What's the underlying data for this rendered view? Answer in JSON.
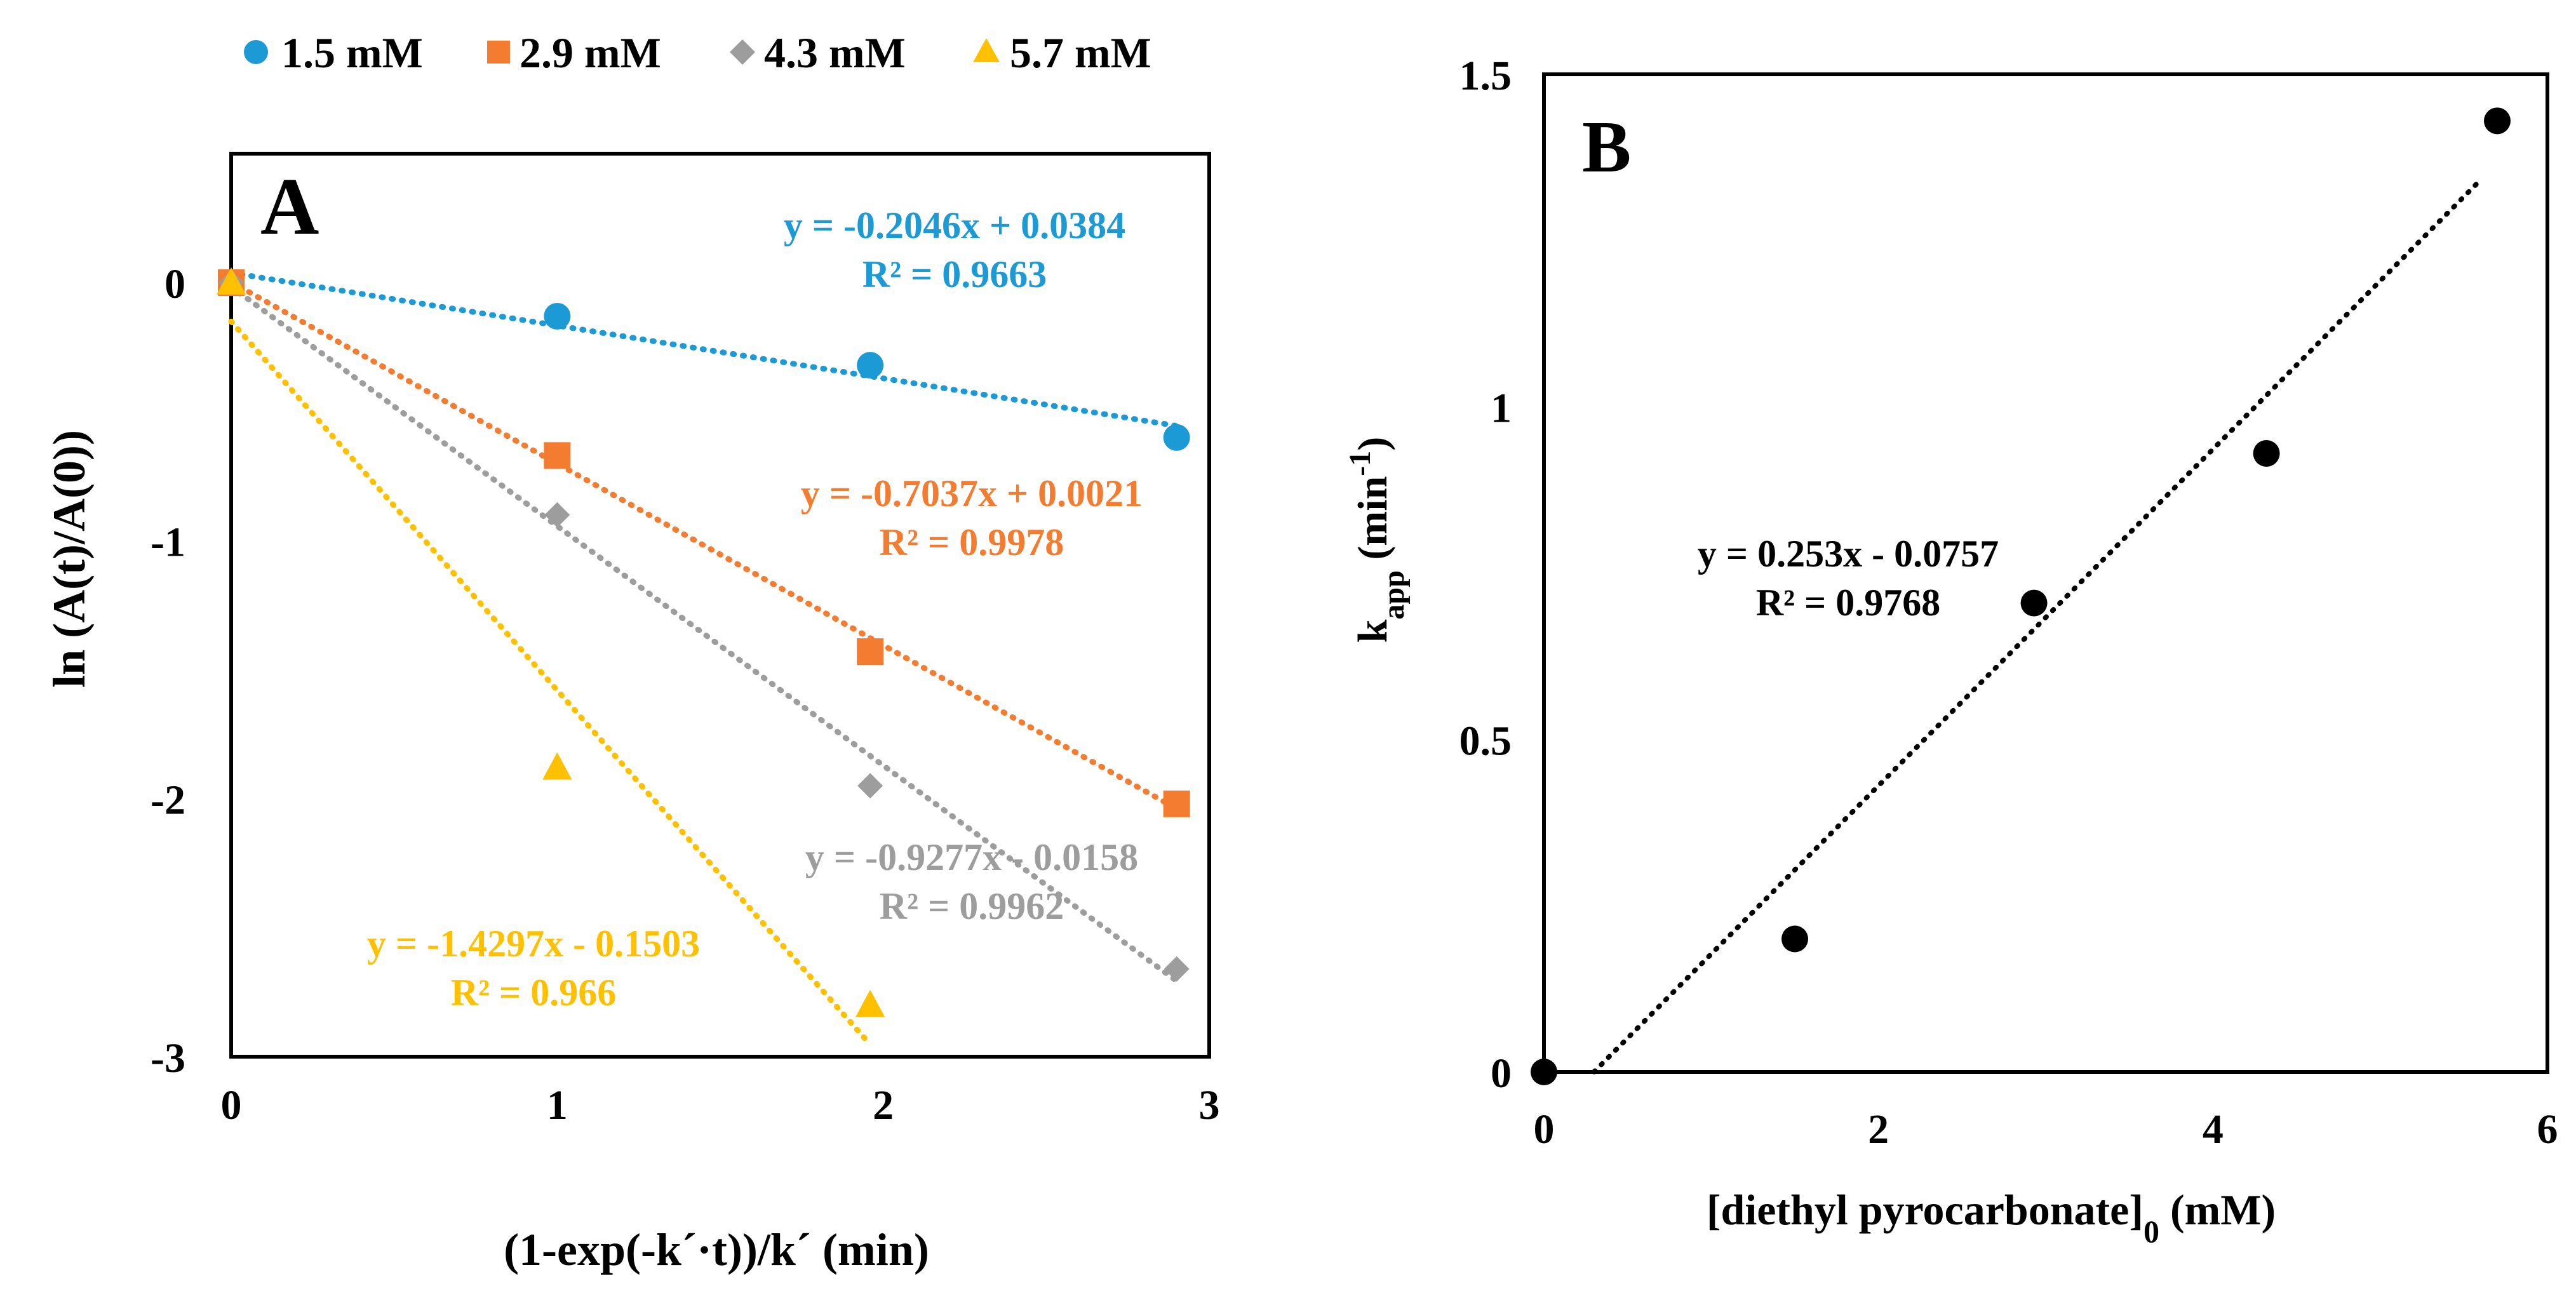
{
  "chart_data": [
    {
      "type": "scatter",
      "panel_label": "A",
      "xlabel": "(1-exp(-k´·t))/k´ (min)",
      "ylabel": "ln (A(t)/A(0))",
      "xlim": [
        0,
        3
      ],
      "ylim": [
        -3,
        0.5
      ],
      "xticks": [
        "0",
        "1",
        "2",
        "3"
      ],
      "yticks": [
        "0",
        "-1",
        "-2",
        "-3"
      ],
      "grid": false,
      "legend_position": "top",
      "trendlines": "dotted linear fits",
      "series": [
        {
          "name": "1.5 mM",
          "marker": "circle",
          "color": "#1B9AD6",
          "x": [
            0,
            1.0,
            1.96,
            2.9
          ],
          "y": [
            0,
            -0.13,
            -0.32,
            -0.6
          ],
          "equation": "y = -0.2046x + 0.0384",
          "r2": "R² = 0.9663",
          "slope": -0.2046,
          "intercept": 0.0384,
          "fit_x": [
            0,
            2.9
          ]
        },
        {
          "name": "2.9 mM",
          "marker": "square",
          "color": "#F47C30",
          "x": [
            0,
            1.0,
            1.96,
            2.9
          ],
          "y": [
            0,
            -0.67,
            -1.43,
            -2.02
          ],
          "equation": "y = -0.7037x + 0.0021",
          "r2": "R² = 0.9978",
          "slope": -0.7037,
          "intercept": 0.0021,
          "fit_x": [
            0,
            2.9
          ]
        },
        {
          "name": "4.3 mM",
          "marker": "diamond",
          "color": "#9D9D9D",
          "x": [
            0,
            1.0,
            1.96,
            2.9
          ],
          "y": [
            0,
            -0.9,
            -1.95,
            -2.66
          ],
          "equation": "y = -0.9277x - 0.0158",
          "r2": "R² = 0.9962",
          "slope": -0.9277,
          "intercept": -0.0158,
          "fit_x": [
            0,
            2.9
          ]
        },
        {
          "name": "5.7 mM",
          "marker": "triangle",
          "color": "#FFC000",
          "x": [
            0,
            1.0,
            1.96
          ],
          "y": [
            0,
            -1.88,
            -2.8
          ],
          "equation": "y = -1.4297x - 0.1503",
          "r2": "R² = 0.966",
          "slope": -1.4297,
          "intercept": -0.1503,
          "fit_x": [
            0,
            1.96
          ]
        }
      ]
    },
    {
      "type": "scatter",
      "panel_label": "B",
      "xlabel_main": "[diethyl pyrocarbonate]",
      "xlabel_sub": "0",
      "xlabel_unit": " (mM)",
      "ylabel_main": "k",
      "ylabel_sub": "app",
      "ylabel_unit_open": " (min",
      "ylabel_sup": "-1",
      "ylabel_unit_close": ")",
      "xlim": [
        0,
        6
      ],
      "ylim": [
        0,
        1.5
      ],
      "xticks": [
        "0",
        "2",
        "4",
        "6"
      ],
      "yticks": [
        "0",
        "0.5",
        "1",
        "1.5"
      ],
      "grid": false,
      "series": [
        {
          "marker": "circle",
          "color": "#000000",
          "x": [
            0,
            1.5,
            2.93,
            4.32,
            5.7
          ],
          "y": [
            0,
            0.2,
            0.705,
            0.93,
            1.43
          ],
          "equation": "y = 0.253x - 0.0757",
          "r2": "R² = 0.9768",
          "slope": 0.253,
          "intercept": -0.0757,
          "fit_x": [
            0.3,
            5.6
          ]
        }
      ]
    }
  ]
}
